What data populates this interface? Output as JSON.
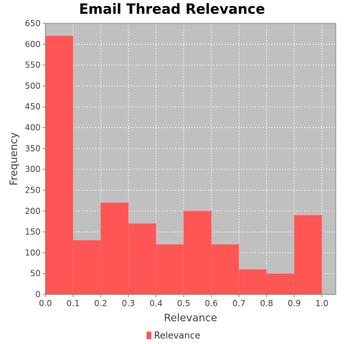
{
  "chart_data": {
    "type": "bar",
    "title": "Email Thread Relevance",
    "xlabel": "Relevance",
    "ylabel": "Frequency",
    "xlim": [
      0.0,
      1.05
    ],
    "ylim": [
      0,
      650
    ],
    "xticks": [
      "0.0",
      "0.1",
      "0.2",
      "0.3",
      "0.4",
      "0.5",
      "0.6",
      "0.7",
      "0.8",
      "0.9",
      "1.0"
    ],
    "yticks": [
      "0",
      "50",
      "100",
      "150",
      "200",
      "250",
      "300",
      "350",
      "400",
      "450",
      "500",
      "550",
      "600",
      "650"
    ],
    "grid": true,
    "legend_position": "bottom",
    "series": [
      {
        "name": "Relevance",
        "color": "#ff5555",
        "bins": [
          {
            "start": 0.0,
            "end": 0.1,
            "value": 620
          },
          {
            "start": 0.1,
            "end": 0.2,
            "value": 130
          },
          {
            "start": 0.2,
            "end": 0.3,
            "value": 220
          },
          {
            "start": 0.3,
            "end": 0.4,
            "value": 170
          },
          {
            "start": 0.4,
            "end": 0.5,
            "value": 120
          },
          {
            "start": 0.5,
            "end": 0.6,
            "value": 200
          },
          {
            "start": 0.6,
            "end": 0.7,
            "value": 120
          },
          {
            "start": 0.7,
            "end": 0.8,
            "value": 60
          },
          {
            "start": 0.8,
            "end": 0.9,
            "value": 50
          },
          {
            "start": 0.9,
            "end": 1.0,
            "value": 190
          }
        ]
      }
    ],
    "background_color": "#c0c0c0"
  }
}
